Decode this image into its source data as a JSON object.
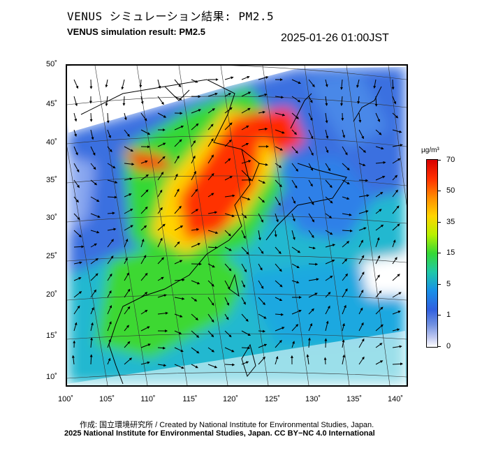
{
  "title_jp": "VENUS シミュレーション結果: PM2.5",
  "title_en": "VENUS simulation result: PM2.5",
  "timestamp": "2025-01-26 01:00JST",
  "lat_labels": [
    "50˚",
    "45˚",
    "40˚",
    "35˚",
    "30˚",
    "25˚",
    "20˚",
    "15˚",
    "10˚"
  ],
  "lon_labels": [
    "100˚",
    "105˚",
    "110˚",
    "115˚",
    "120˚",
    "125˚",
    "130˚",
    "135˚",
    "140˚"
  ],
  "colorbar": {
    "unit": "µg/m³",
    "ticks": [
      "70",
      "50",
      "35",
      "15",
      "5",
      "1",
      "0"
    ],
    "colors": [
      "#d80000",
      "#ff8c00",
      "#ffd400",
      "#35d836",
      "#20c8a8",
      "#1890e8",
      "#3060e0",
      "#ffffff"
    ]
  },
  "credit_line": "作成: 国立環境研究所 / Created by National Institute for Environmental Studies, Japan.",
  "copyright_line": "2025 National Institute for Environmental Studies, Japan. CC BY−NC 4.0 International"
}
